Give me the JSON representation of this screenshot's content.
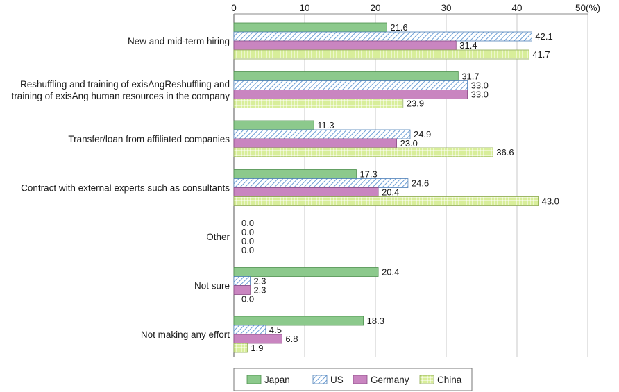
{
  "chart_data": {
    "type": "bar",
    "orientation": "horizontal",
    "x_unit_label": "(%)",
    "xlim": [
      0,
      50
    ],
    "x_ticks": [
      0,
      10,
      20,
      30,
      40,
      50
    ],
    "grid": true,
    "legend_position": "bottom",
    "categories": [
      [
        "New and mid-term hiring"
      ],
      [
        "Reshuffling and training of exisAngReshuffling and",
        "training of exisAng human resources in the company"
      ],
      [
        "Transfer/loan from affiliated companies"
      ],
      [
        "Contract with external experts such as consultants"
      ],
      [
        "Other"
      ],
      [
        "Not sure"
      ],
      [
        "Not making any effort"
      ]
    ],
    "series": [
      {
        "name": "Japan",
        "pattern": "solid",
        "color": "#8cc98c",
        "stroke": "#4d8f4d",
        "values": [
          21.6,
          31.7,
          11.3,
          17.3,
          0.0,
          20.4,
          18.3
        ]
      },
      {
        "name": "US",
        "pattern": "diagonal",
        "color": "#6d9fd6",
        "stroke": "#4d7fb8",
        "values": [
          42.1,
          33.0,
          24.9,
          24.6,
          0.0,
          2.3,
          4.5
        ]
      },
      {
        "name": "Germany",
        "pattern": "solid",
        "color": "#c985c0",
        "stroke": "#8d4d86",
        "values": [
          31.4,
          33.0,
          23.0,
          20.4,
          0.0,
          2.3,
          6.8
        ]
      },
      {
        "name": "China",
        "pattern": "grid",
        "color": "#cde68a",
        "stroke": "#8aa84a",
        "values": [
          41.7,
          23.9,
          36.6,
          43.0,
          0.0,
          0.0,
          1.9
        ]
      }
    ]
  }
}
